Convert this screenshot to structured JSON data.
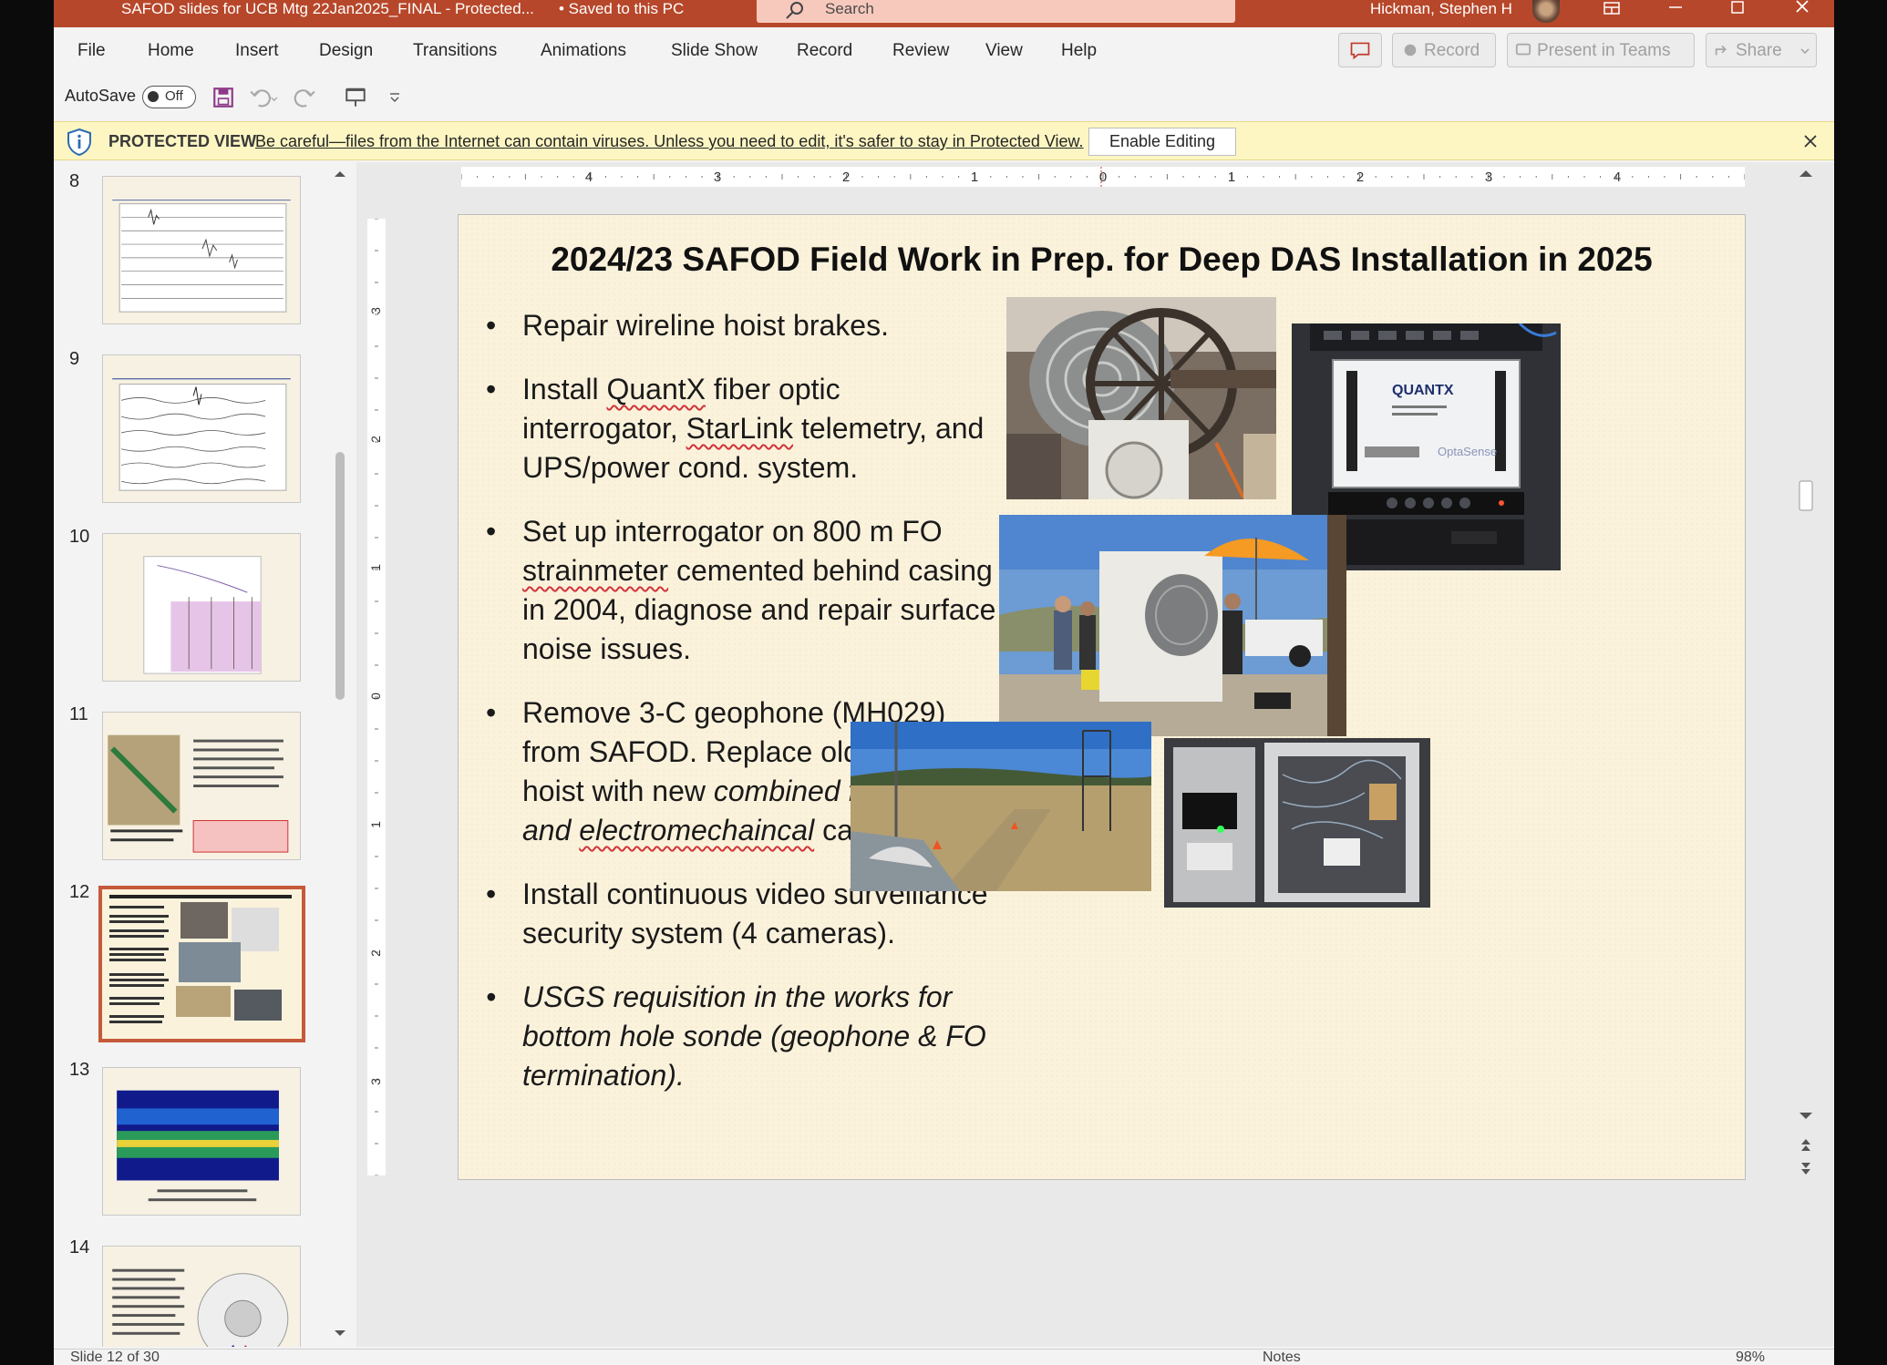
{
  "titlebar": {
    "doc_title": "SAFOD slides for UCB Mtg 22Jan2025_FINAL  -  Protected...",
    "save_state": "•  Saved to this PC",
    "search_placeholder": "Search",
    "user_name": "Hickman, Stephen H"
  },
  "menu": {
    "items": [
      "File",
      "Home",
      "Insert",
      "Design",
      "Transitions",
      "Animations",
      "Slide Show",
      "Record",
      "Review",
      "View",
      "Help"
    ],
    "record_button": "Record",
    "present_button": "Present in Teams",
    "share_button": "Share"
  },
  "quick_access": {
    "autosave_label": "AutoSave",
    "autosave_state": "Off"
  },
  "protected_view": {
    "title": "PROTECTED VIEW",
    "message": "Be careful—files from the Internet can contain viruses. Unless you need to edit, it's safer to stay in Protected View.",
    "enable_button": "Enable Editing"
  },
  "thumbnails": {
    "numbers": [
      "8",
      "9",
      "10",
      "11",
      "12",
      "13",
      "14"
    ],
    "selected": "12"
  },
  "ruler": {
    "h_labels": [
      "4",
      "3",
      "2",
      "1",
      "0",
      "1",
      "2",
      "3",
      "4"
    ],
    "v_labels": [
      "3",
      "2",
      "1",
      "0",
      "1",
      "2",
      "3"
    ]
  },
  "slide": {
    "title": "2024/23 SAFOD Field Work in Prep. for Deep DAS Installation in 2025",
    "bullets": {
      "b1": "Repair wireline hoist brakes.",
      "b2_a": "Install ",
      "b2_quantx": "QuantX",
      "b2_b": " fiber optic interrogator, ",
      "b2_starlink": "StarLink",
      "b2_c": " telemetry, and UPS/power cond. system.",
      "b3_a": "Set up interrogator on 800 m FO ",
      "b3_strain": "strainmeter",
      "b3_b": " cemented behind casing in 2004, diagnose and repair surface noise issues.",
      "b4_a": "Remove 3-C geophone (MH029) from SAFOD. Replace old cable on hoist with new ",
      "b4_italic1": "combined fiber-optic and ",
      "b4_electro": "electromechaincal",
      "b4_b": " cable.",
      "b5": "Install continuous video surveillance security system (4 cameras).",
      "b6": "USGS requisition in the works for bottom hole sonde (geophone & FO termination)."
    },
    "photo_labels": {
      "quantx_logo": "QUANTX",
      "optasense": "OptaSense"
    }
  },
  "status": {
    "slide_count": "Slide 12 of 30",
    "notes": "Notes",
    "zoom": "98%"
  }
}
